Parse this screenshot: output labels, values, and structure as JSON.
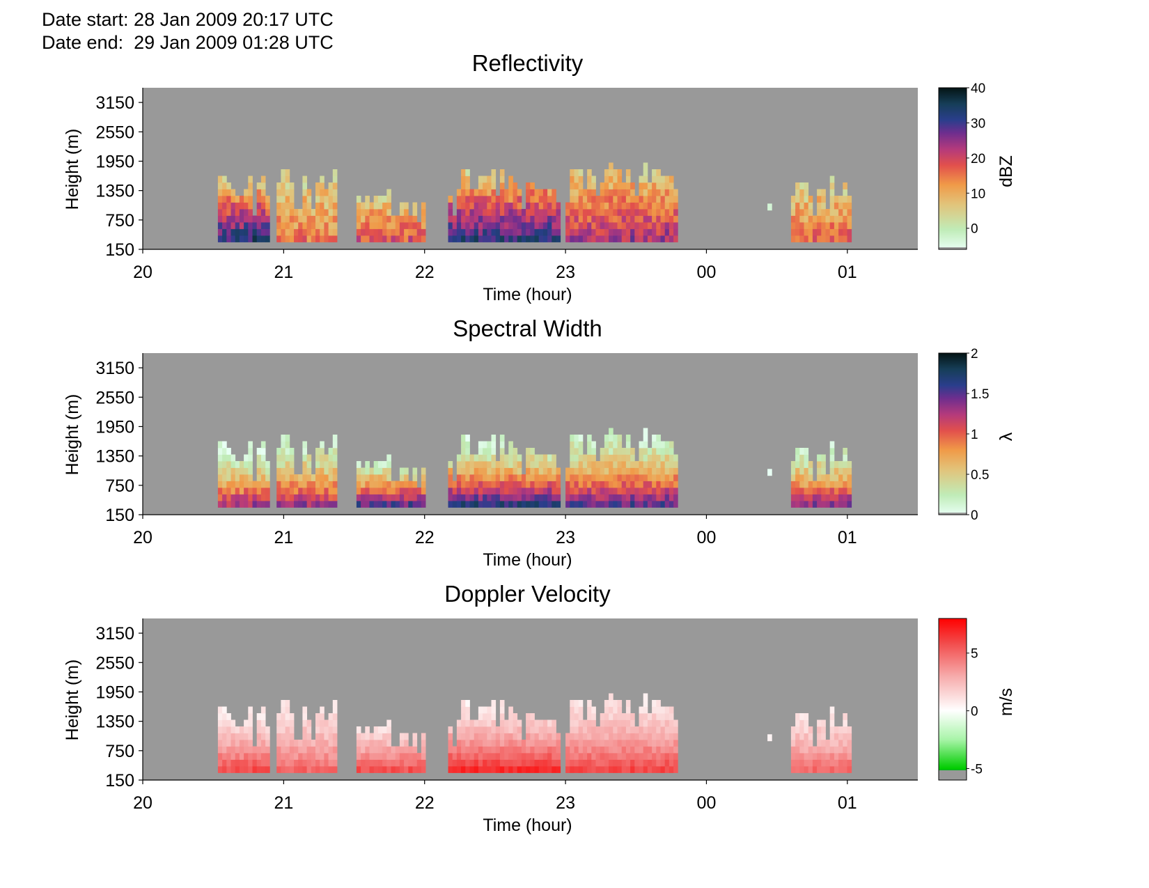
{
  "header": {
    "date_start": "Date start: 28 Jan 2009 20:17 UTC",
    "date_end": "Date end:  29 Jan 2009 01:28 UTC"
  },
  "chart_data": [
    {
      "type": "heatmap",
      "title": "Reflectivity",
      "xlabel": "Time (hour)",
      "ylabel": "Height (m)",
      "x_ticks": [
        "20",
        "21",
        "22",
        "23",
        "00",
        "01"
      ],
      "y_ticks": [
        "150",
        "750",
        "1350",
        "1950",
        "2550",
        "3150"
      ],
      "xlim_hours": [
        20.0,
        25.5
      ],
      "ylim": [
        150,
        3450
      ],
      "colorbar": {
        "label": "dBZ",
        "ticks": [
          "0",
          "10",
          "20",
          "30",
          "40"
        ],
        "range": [
          -6,
          40
        ]
      },
      "background_color": "#999999",
      "echo_regions": [
        {
          "start": "20:32",
          "end": "20:52",
          "base_m": 300,
          "top_m": 1750,
          "peak_dbz": 35
        },
        {
          "start": "20:57",
          "end": "21:22",
          "base_m": 300,
          "top_m": 1950,
          "peak_dbz": 16
        },
        {
          "start": "21:31",
          "end": "21:58",
          "base_m": 300,
          "top_m": 1550,
          "peak_dbz": 20
        },
        {
          "start": "22:10",
          "end": "22:57",
          "base_m": 300,
          "top_m": 1900,
          "peak_dbz": 34
        },
        {
          "start": "23:00",
          "end": "23:46",
          "base_m": 300,
          "top_m": 2100,
          "peak_dbz": 25
        },
        {
          "start": "00:26",
          "end": "00:27",
          "base_m": 950,
          "top_m": 1200,
          "peak_dbz": 2
        },
        {
          "start": "00:36",
          "end": "01:00",
          "base_m": 300,
          "top_m": 1800,
          "peak_dbz": 18
        }
      ]
    },
    {
      "type": "heatmap",
      "title": "Spectral Width",
      "xlabel": "Time (hour)",
      "ylabel": "Height (m)",
      "x_ticks": [
        "20",
        "21",
        "22",
        "23",
        "00",
        "01"
      ],
      "y_ticks": [
        "150",
        "750",
        "1350",
        "1950",
        "2550",
        "3150"
      ],
      "xlim_hours": [
        20.0,
        25.5
      ],
      "ylim": [
        150,
        3450
      ],
      "colorbar": {
        "label": "λ",
        "ticks": [
          "0",
          "0.5",
          "1",
          "1.5",
          "2"
        ],
        "range": [
          0,
          2
        ]
      },
      "background_color": "#999999",
      "echo_regions": [
        {
          "start": "20:32",
          "end": "20:52",
          "base_m": 300,
          "top_m": 1750,
          "peak_width": 1.4
        },
        {
          "start": "20:57",
          "end": "21:22",
          "base_m": 300,
          "top_m": 1950,
          "peak_width": 1.4
        },
        {
          "start": "21:31",
          "end": "21:58",
          "base_m": 300,
          "top_m": 1550,
          "peak_width": 1.7
        },
        {
          "start": "22:10",
          "end": "22:57",
          "base_m": 300,
          "top_m": 1900,
          "peak_width": 1.8
        },
        {
          "start": "23:00",
          "end": "23:46",
          "base_m": 300,
          "top_m": 2100,
          "peak_width": 1.6
        },
        {
          "start": "00:26",
          "end": "00:27",
          "base_m": 950,
          "top_m": 1200,
          "peak_width": 0.1
        },
        {
          "start": "00:36",
          "end": "01:00",
          "base_m": 300,
          "top_m": 1800,
          "peak_width": 1.5
        }
      ]
    },
    {
      "type": "heatmap",
      "title": "Doppler Velocity",
      "xlabel": "Time (hour)",
      "ylabel": "Height (m)",
      "x_ticks": [
        "20",
        "21",
        "22",
        "23",
        "00",
        "01"
      ],
      "y_ticks": [
        "150",
        "750",
        "1350",
        "1950",
        "2550",
        "3150"
      ],
      "xlim_hours": [
        20.0,
        25.5
      ],
      "ylim": [
        150,
        3450
      ],
      "colorbar": {
        "label": "m/s",
        "ticks": [
          "-5",
          "0",
          "5"
        ],
        "range": [
          -6,
          8
        ]
      },
      "background_color": "#999999",
      "echo_regions": [
        {
          "start": "20:32",
          "end": "20:52",
          "base_m": 300,
          "top_m": 1750,
          "peak_velocity": 6
        },
        {
          "start": "20:57",
          "end": "21:22",
          "base_m": 300,
          "top_m": 1950,
          "peak_velocity": 5
        },
        {
          "start": "21:31",
          "end": "21:58",
          "base_m": 300,
          "top_m": 1550,
          "peak_velocity": 6
        },
        {
          "start": "22:10",
          "end": "22:57",
          "base_m": 300,
          "top_m": 1900,
          "peak_velocity": 7
        },
        {
          "start": "23:00",
          "end": "23:46",
          "base_m": 300,
          "top_m": 2100,
          "peak_velocity": 6
        },
        {
          "start": "00:26",
          "end": "00:27",
          "base_m": 950,
          "top_m": 1200,
          "peak_velocity": 1
        },
        {
          "start": "00:36",
          "end": "01:00",
          "base_m": 300,
          "top_m": 1800,
          "peak_velocity": 5
        }
      ]
    }
  ]
}
